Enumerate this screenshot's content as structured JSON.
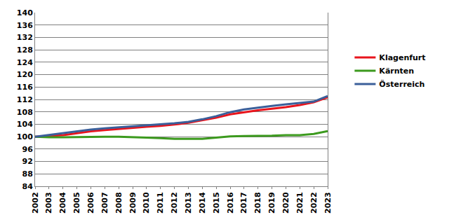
{
  "chart_data": {
    "type": "line",
    "x": [
      2002,
      2003,
      2004,
      2005,
      2006,
      2007,
      2008,
      2009,
      2010,
      2011,
      2012,
      2013,
      2014,
      2015,
      2016,
      2017,
      2018,
      2019,
      2020,
      2021,
      2022,
      2023
    ],
    "series": [
      {
        "name": "Klagenfurt",
        "color": "#e8141c",
        "values": [
          100,
          100.2,
          100.5,
          101.1,
          101.7,
          102.1,
          102.5,
          102.9,
          103.2,
          103.5,
          103.9,
          104.5,
          105.3,
          106.1,
          107.2,
          107.9,
          108.5,
          109.0,
          109.5,
          110.2,
          111.1,
          112.7
        ]
      },
      {
        "name": "Kärnten",
        "color": "#3c9a1e",
        "values": [
          100,
          99.8,
          99.8,
          99.9,
          99.9,
          100.0,
          100.0,
          99.9,
          99.7,
          99.5,
          99.3,
          99.3,
          99.3,
          99.7,
          100.1,
          100.2,
          100.2,
          100.3,
          100.5,
          100.5,
          100.9,
          101.8
        ]
      },
      {
        "name": "Österreich",
        "color": "#3b5f9a",
        "values": [
          100,
          100.6,
          101.1,
          101.7,
          102.3,
          102.7,
          103.0,
          103.4,
          103.7,
          103.9,
          104.3,
          104.8,
          105.6,
          106.6,
          107.9,
          108.8,
          109.4,
          109.9,
          110.4,
          110.8,
          111.3,
          113.1
        ]
      }
    ],
    "xlim": [
      2002,
      2023
    ],
    "xticks": [
      2002,
      2003,
      2004,
      2005,
      2006,
      2007,
      2008,
      2009,
      2010,
      2011,
      2012,
      2013,
      2014,
      2015,
      2016,
      2017,
      2018,
      2019,
      2020,
      2021,
      2022,
      2023
    ],
    "ylim": [
      84,
      140
    ],
    "yticks": [
      84,
      88,
      92,
      96,
      100,
      104,
      108,
      112,
      116,
      120,
      124,
      128,
      132,
      136,
      140
    ],
    "grid": true,
    "legend": "right"
  }
}
